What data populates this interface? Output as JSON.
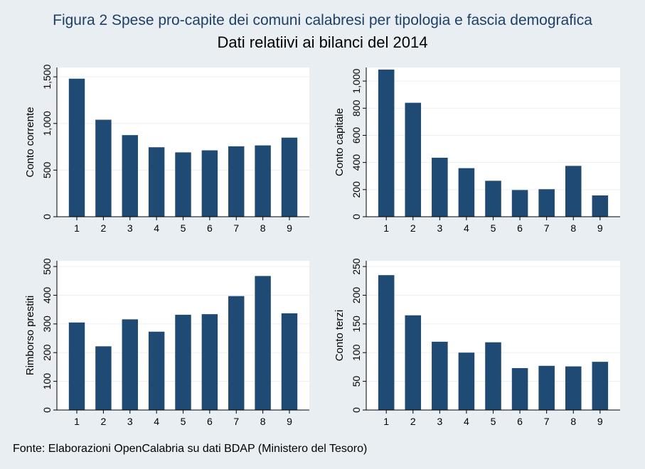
{
  "title": "Figura 2 Spese pro-capite dei comuni calabresi per tipologia e fascia demografica",
  "subtitle": "Dati relatiivi ai bilanci del 2014",
  "source": "Fonte: Elaborazioni OpenCalabria su dati BDAP (Ministero del Tesoro)",
  "colors": {
    "bar": "#1f4a73",
    "background": "#e8eef2",
    "plot": "#ffffff",
    "grid": "#eaf0f3"
  },
  "chart_data": [
    {
      "type": "bar",
      "title": "",
      "xlabel": "",
      "ylabel": "Conto corrente",
      "categories": [
        "1",
        "2",
        "3",
        "4",
        "5",
        "6",
        "7",
        "8",
        "9"
      ],
      "values": [
        1480,
        1040,
        875,
        745,
        690,
        712,
        755,
        765,
        848
      ],
      "ylim": [
        0,
        1600
      ],
      "yticks": [
        0,
        500,
        1000,
        1500
      ],
      "ytick_labels": [
        "0",
        "500",
        "1,000",
        "1,500"
      ],
      "grid": true
    },
    {
      "type": "bar",
      "title": "",
      "xlabel": "",
      "ylabel": "Conto capitale",
      "categories": [
        "1",
        "2",
        "3",
        "4",
        "5",
        "6",
        "7",
        "8",
        "9"
      ],
      "values": [
        1085,
        840,
        435,
        358,
        265,
        197,
        203,
        375,
        157
      ],
      "ylim": [
        0,
        1100
      ],
      "yticks": [
        0,
        200,
        400,
        600,
        800,
        1000
      ],
      "ytick_labels": [
        "0",
        "200",
        "400",
        "600",
        "800",
        "1,000"
      ],
      "grid": true
    },
    {
      "type": "bar",
      "title": "",
      "xlabel": "",
      "ylabel": "Rimborso prestiti",
      "categories": [
        "1",
        "2",
        "3",
        "4",
        "5",
        "6",
        "7",
        "8",
        "9"
      ],
      "values": [
        305,
        222,
        316,
        273,
        332,
        334,
        397,
        467,
        337
      ],
      "ylim": [
        0,
        520
      ],
      "yticks": [
        0,
        100,
        200,
        300,
        400,
        500
      ],
      "ytick_labels": [
        "0",
        "100",
        "200",
        "300",
        "400",
        "500"
      ],
      "grid": true
    },
    {
      "type": "bar",
      "title": "",
      "xlabel": "",
      "ylabel": "Conto terzi",
      "categories": [
        "1",
        "2",
        "3",
        "4",
        "5",
        "6",
        "7",
        "8",
        "9"
      ],
      "values": [
        235,
        165,
        119,
        100,
        118,
        73,
        77,
        76,
        84
      ],
      "ylim": [
        0,
        260
      ],
      "yticks": [
        0,
        50,
        100,
        150,
        200,
        250
      ],
      "ytick_labels": [
        "0",
        "50",
        "100",
        "150",
        "200",
        "250"
      ],
      "grid": true
    }
  ]
}
